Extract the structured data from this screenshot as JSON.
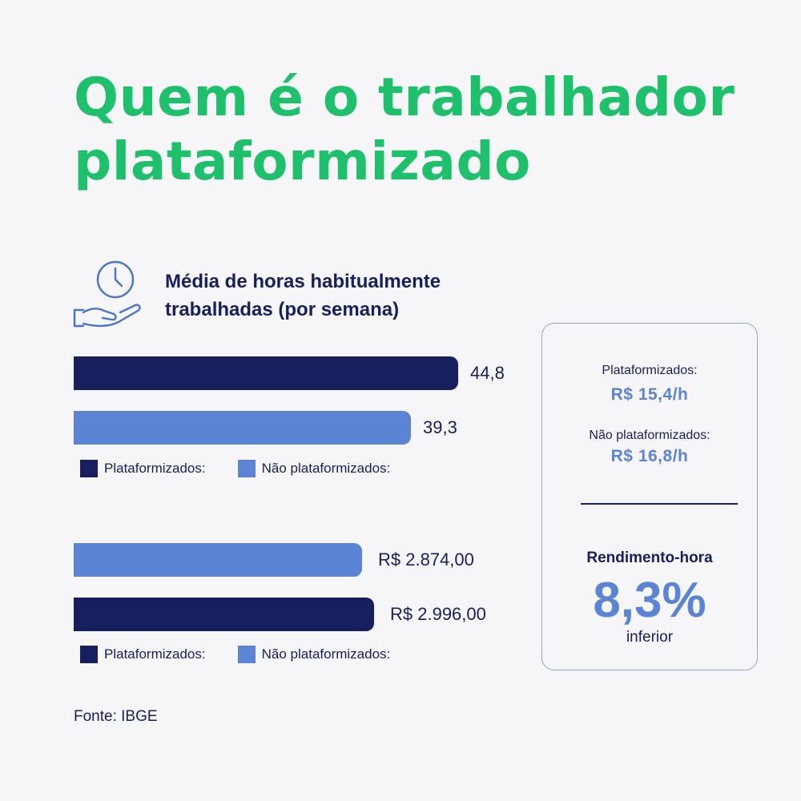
{
  "title": "Quem é o trabalhador plataformizado",
  "section_title": "Média de horas habitualmente trabalhadas (por semana)",
  "legend": {
    "plataformizados": "Plataformizados:",
    "nao_plataformizados": "Não plataformizados:"
  },
  "colors": {
    "title": "#1ec06b",
    "plataformizados": "#171f5e",
    "nao_plataformizados": "#5b84d4"
  },
  "icon": "clock-in-hand-icon",
  "chart_data": [
    {
      "type": "bar",
      "orientation": "horizontal",
      "series": [
        {
          "name": "Plataformizados:",
          "value": 44.8,
          "label": "44,8"
        },
        {
          "name": "Não plataformizados:",
          "value": 39.3,
          "label": "39,3"
        }
      ]
    },
    {
      "type": "bar",
      "orientation": "horizontal",
      "series": [
        {
          "name": "Não plataformizados:",
          "value": 2874.0,
          "label": "R$ 2.874,00"
        },
        {
          "name": "Plataformizados:",
          "value": 2996.0,
          "label": "R$ 2.996,00"
        }
      ]
    }
  ],
  "card": {
    "plat_label": "Plataformizados:",
    "plat_value": "R$ 15,4/h",
    "nao_label": "Não plataformizados:",
    "nao_value": "R$ 16,8/h",
    "rendimento_label": "Rendimento-hora",
    "rendimento_value": "8,3%",
    "rendimento_sub": "inferior"
  },
  "source": "Fonte: IBGE"
}
